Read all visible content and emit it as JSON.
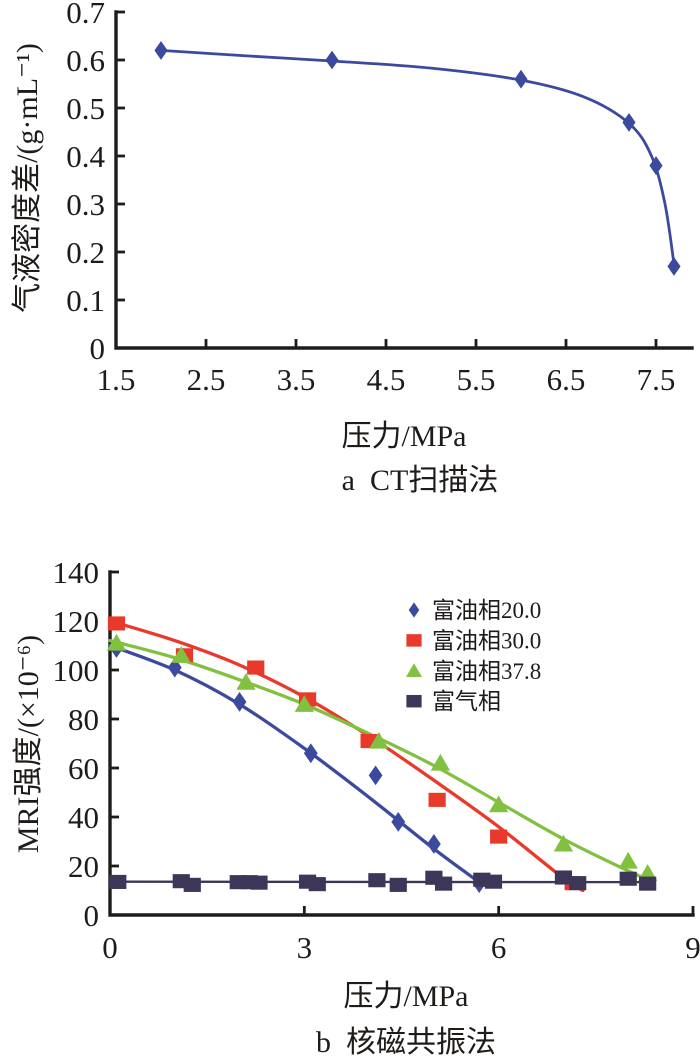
{
  "figure": {
    "background": "#ffffff",
    "ink_color": "#1e1b19"
  },
  "chart_data": [
    {
      "id": "ct-scan-chart",
      "type": "line",
      "title": "a  CT扫描法",
      "xlabel": "压力/MPa",
      "ylabel": "气液密度差/(g·mL⁻¹)",
      "xlim": [
        1.5,
        7.9
      ],
      "ylim": [
        0,
        0.7
      ],
      "xticks": [
        2.5,
        3.5,
        4.5,
        5.5,
        6.5,
        7.5
      ],
      "xtick_labels": [
        "1.5",
        "2.5",
        "3.5",
        "4.5",
        "5.5",
        "6.5",
        "7.5"
      ],
      "xtick_label_values": [
        1.5,
        2.5,
        3.5,
        4.5,
        5.5,
        6.5,
        7.5
      ],
      "yticks": [
        0.1,
        0.2,
        0.3,
        0.4,
        0.5,
        0.6,
        0.7
      ],
      "ytick_labels": [
        "0",
        "0.1",
        "0.2",
        "0.3",
        "0.4",
        "0.5",
        "0.6",
        "0.7"
      ],
      "ytick_label_values": [
        0,
        0.1,
        0.2,
        0.3,
        0.4,
        0.5,
        0.6,
        0.7
      ],
      "grid": false,
      "legend": null,
      "series": [
        {
          "name": "气液密度差",
          "marker": "diamond",
          "color": "#3c4a9d",
          "points": [
            [
              2.0,
              0.62
            ],
            [
              3.9,
              0.6
            ],
            [
              6.0,
              0.56
            ],
            [
              7.2,
              0.47
            ],
            [
              7.5,
              0.38
            ],
            [
              7.7,
              0.17
            ]
          ],
          "trend": [
            [
              2.0,
              0.62
            ],
            [
              3.0,
              0.608
            ],
            [
              3.9,
              0.598
            ],
            [
              5.0,
              0.583
            ],
            [
              6.0,
              0.558
            ],
            [
              6.7,
              0.523
            ],
            [
              7.2,
              0.468
            ],
            [
              7.45,
              0.4
            ],
            [
              7.6,
              0.3
            ],
            [
              7.7,
              0.175
            ]
          ]
        }
      ]
    },
    {
      "id": "nmr-chart",
      "type": "scatter",
      "title": "b  核磁共振法",
      "xlabel": "压力/MPa",
      "ylabel": "MRI强度/(×10⁻⁶)",
      "xlim": [
        0,
        9
      ],
      "ylim": [
        0,
        140
      ],
      "xticks": [
        3,
        6,
        9
      ],
      "xtick_labels": [
        "0",
        "3",
        "6",
        "9"
      ],
      "xtick_label_values": [
        0,
        3,
        6,
        9
      ],
      "yticks": [
        20,
        40,
        60,
        80,
        100,
        120,
        140
      ],
      "ytick_labels": [
        "0",
        "20",
        "40",
        "60",
        "80",
        "100",
        "120",
        "140"
      ],
      "ytick_label_values": [
        0,
        20,
        40,
        60,
        80,
        100,
        120,
        140
      ],
      "grid": false,
      "legend": {
        "position": "upper-right-inside"
      },
      "series": [
        {
          "name": "富油相20.0",
          "marker": "diamond",
          "color": "#3c4a9d",
          "points": [
            [
              0.1,
              109
            ],
            [
              1.0,
              101
            ],
            [
              2.0,
              87
            ],
            [
              3.1,
              66
            ],
            [
              4.1,
              57
            ],
            [
              4.45,
              38
            ],
            [
              5.0,
              29
            ],
            [
              5.7,
              13
            ]
          ],
          "trend": [
            [
              0,
              110
            ],
            [
              1,
              100
            ],
            [
              2,
              86
            ],
            [
              3,
              68
            ],
            [
              4,
              48
            ],
            [
              5,
              27
            ],
            [
              5.72,
              13
            ]
          ]
        },
        {
          "name": "富油相30.0",
          "marker": "square",
          "color": "#e8392b",
          "points": [
            [
              0.1,
              119
            ],
            [
              1.15,
              106
            ],
            [
              2.25,
              101
            ],
            [
              3.05,
              88
            ],
            [
              4.0,
              71
            ],
            [
              5.05,
              47
            ],
            [
              6.0,
              32
            ],
            [
              7.15,
              13
            ]
          ],
          "trend": [
            [
              0,
              120
            ],
            [
              1,
              112
            ],
            [
              2,
              102
            ],
            [
              3,
              89
            ],
            [
              4,
              73
            ],
            [
              5,
              55
            ],
            [
              6,
              36
            ],
            [
              7,
              15
            ],
            [
              7.3,
              10
            ]
          ]
        },
        {
          "name": "富油相37.8",
          "marker": "triangle",
          "color": "#82c13f",
          "points": [
            [
              0.1,
              111
            ],
            [
              1.1,
              106
            ],
            [
              2.1,
              95
            ],
            [
              3.0,
              86
            ],
            [
              4.15,
              71
            ],
            [
              5.1,
              62
            ],
            [
              6.0,
              45
            ],
            [
              7.0,
              29
            ],
            [
              8.0,
              22
            ],
            [
              8.3,
              17
            ]
          ],
          "trend": [
            [
              0,
              112
            ],
            [
              1,
              105
            ],
            [
              2,
              96
            ],
            [
              3,
              86
            ],
            [
              4,
              74
            ],
            [
              5,
              61
            ],
            [
              6,
              46
            ],
            [
              7,
              31
            ],
            [
              8,
              18
            ],
            [
              8.4,
              13.5
            ]
          ]
        },
        {
          "name": "富气相",
          "marker": "square",
          "color": "#3d3658",
          "points": [
            [
              0.12,
              13.5
            ],
            [
              1.1,
              13.8
            ],
            [
              1.27,
              12.3
            ],
            [
              1.98,
              13.4
            ],
            [
              2.15,
              13.4
            ],
            [
              2.3,
              13.2
            ],
            [
              3.05,
              13.6
            ],
            [
              3.2,
              12.6
            ],
            [
              4.12,
              14.2
            ],
            [
              4.45,
              12.3
            ],
            [
              5.0,
              15.2
            ],
            [
              5.15,
              12.8
            ],
            [
              5.74,
              14.4
            ],
            [
              5.92,
              13.6
            ],
            [
              7.0,
              15.3
            ],
            [
              7.22,
              13.0
            ],
            [
              8.0,
              14.8
            ],
            [
              8.3,
              12.8
            ]
          ],
          "trend": [
            [
              0,
              13.6
            ],
            [
              8.4,
              13.4
            ]
          ]
        }
      ]
    }
  ]
}
